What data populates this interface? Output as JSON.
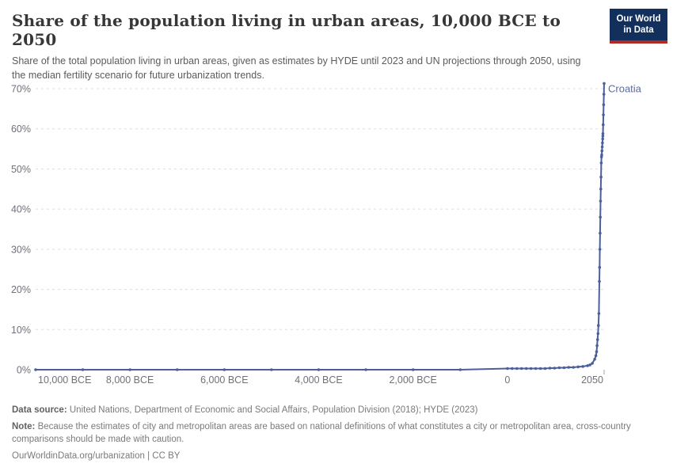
{
  "header": {
    "title": "Share of the population living in urban areas, 10,000 BCE to 2050",
    "subtitle": "Share of the total population living in urban areas, given as estimates by HYDE until 2023 and UN projections through 2050, using the median fertility scenario for future urbanization trends.",
    "logo": {
      "line1": "Our World",
      "line2": "in Data",
      "bg_color": "#12305b",
      "accent_color": "#b22a25"
    }
  },
  "chart_data": {
    "type": "line",
    "title": "Share of the population living in urban areas, 10,000 BCE to 2050",
    "xlabel": "",
    "ylabel": "",
    "xlim": [
      -10000,
      2050
    ],
    "ylim": [
      0,
      70
    ],
    "grid": "horizontal-dashed",
    "grid_color": "#dddde0",
    "tick_label_color": "#70707a",
    "end_tick_color": "#a3a3a3",
    "legend_position": "end-of-line",
    "y_ticks": [
      {
        "value": 0,
        "label": "0%"
      },
      {
        "value": 10,
        "label": "10%"
      },
      {
        "value": 20,
        "label": "20%"
      },
      {
        "value": 30,
        "label": "30%"
      },
      {
        "value": 40,
        "label": "40%"
      },
      {
        "value": 50,
        "label": "50%"
      },
      {
        "value": 60,
        "label": "60%"
      },
      {
        "value": 70,
        "label": "70%"
      }
    ],
    "x_ticks": [
      {
        "value": -10000,
        "label": "10,000 BCE"
      },
      {
        "value": -8000,
        "label": "8,000 BCE"
      },
      {
        "value": -6000,
        "label": "6,000 BCE"
      },
      {
        "value": -4000,
        "label": "4,000 BCE"
      },
      {
        "value": -2000,
        "label": "2,000 BCE"
      },
      {
        "value": 0,
        "label": "0"
      },
      {
        "value": 2050,
        "label": "2050"
      }
    ],
    "series": [
      {
        "name": "Croatia",
        "color": "#4b5f9b",
        "label_color": "#5a6ba3",
        "points": [
          [
            -10000,
            0
          ],
          [
            -9000,
            0
          ],
          [
            -8000,
            0
          ],
          [
            -7000,
            0
          ],
          [
            -6000,
            0
          ],
          [
            -5000,
            0
          ],
          [
            -4000,
            0
          ],
          [
            -3000,
            0
          ],
          [
            -2000,
            0
          ],
          [
            -1000,
            0
          ],
          [
            0,
            0.3
          ],
          [
            100,
            0.3
          ],
          [
            200,
            0.3
          ],
          [
            300,
            0.3
          ],
          [
            400,
            0.3
          ],
          [
            500,
            0.3
          ],
          [
            600,
            0.3
          ],
          [
            700,
            0.3
          ],
          [
            800,
            0.3
          ],
          [
            900,
            0.4
          ],
          [
            1000,
            0.4
          ],
          [
            1100,
            0.5
          ],
          [
            1200,
            0.5
          ],
          [
            1300,
            0.6
          ],
          [
            1400,
            0.6
          ],
          [
            1500,
            0.7
          ],
          [
            1600,
            0.8
          ],
          [
            1700,
            1
          ],
          [
            1750,
            1.2
          ],
          [
            1800,
            1.6
          ],
          [
            1850,
            2.6
          ],
          [
            1875,
            3.5
          ],
          [
            1890,
            4.5
          ],
          [
            1900,
            6
          ],
          [
            1910,
            7.5
          ],
          [
            1920,
            9
          ],
          [
            1930,
            11
          ],
          [
            1940,
            14
          ],
          [
            1950,
            22
          ],
          [
            1955,
            25.5
          ],
          [
            1960,
            30
          ],
          [
            1965,
            34
          ],
          [
            1970,
            38
          ],
          [
            1975,
            42
          ],
          [
            1980,
            45
          ],
          [
            1985,
            48
          ],
          [
            1990,
            51.5
          ],
          [
            1995,
            53
          ],
          [
            2000,
            53.5
          ],
          [
            2005,
            54.5
          ],
          [
            2010,
            55.5
          ],
          [
            2015,
            56.5
          ],
          [
            2020,
            57.5
          ],
          [
            2023,
            58.2
          ],
          [
            2025,
            58.8
          ],
          [
            2030,
            61
          ],
          [
            2035,
            63.5
          ],
          [
            2040,
            66
          ],
          [
            2045,
            68.6
          ],
          [
            2050,
            71.3
          ]
        ]
      }
    ]
  },
  "footer": {
    "data_source_label": "Data source:",
    "data_source": "United Nations, Department of Economic and Social Affairs, Population Division (2018); HYDE (2023)",
    "note_label": "Note:",
    "note": "Because the estimates of city and metropolitan areas are based on national definitions of what constitutes a city or metropolitan area, cross-country comparisons should be made with caution.",
    "citation": "OurWorldinData.org/urbanization | CC BY"
  }
}
